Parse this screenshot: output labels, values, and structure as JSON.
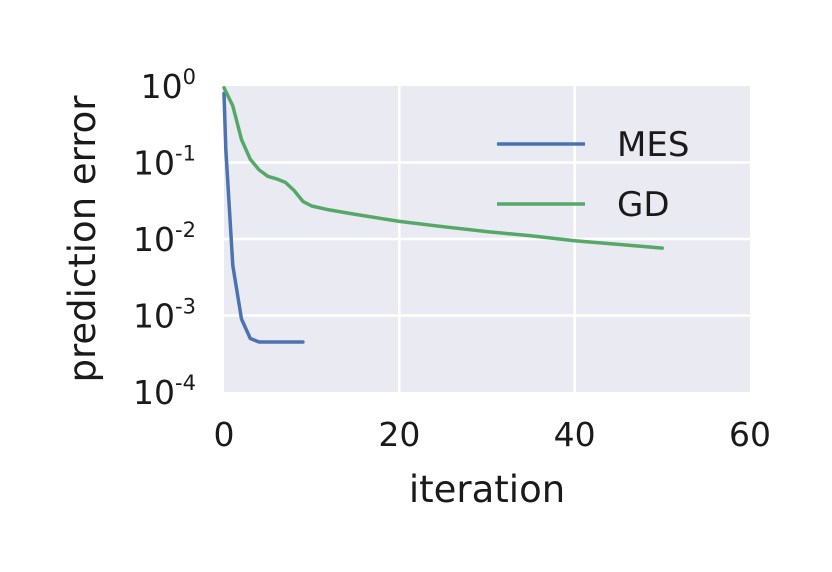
{
  "chart_data": {
    "type": "line",
    "xlabel": "iteration",
    "ylabel": "prediction error",
    "xlim": [
      0,
      60
    ],
    "ylim": [
      0.0001,
      1
    ],
    "yscale": "log",
    "grid": true,
    "legend_position": "top-right",
    "x_ticks": [
      {
        "value": 0,
        "label": "0"
      },
      {
        "value": 20,
        "label": "20"
      },
      {
        "value": 40,
        "label": "40"
      },
      {
        "value": 60,
        "label": "60"
      }
    ],
    "y_ticks": [
      {
        "value": 1,
        "base": "10",
        "exp": "0"
      },
      {
        "value": 0.1,
        "base": "10",
        "exp": "-1"
      },
      {
        "value": 0.01,
        "base": "10",
        "exp": "-2"
      },
      {
        "value": 0.001,
        "base": "10",
        "exp": "-3"
      },
      {
        "value": 0.0001,
        "base": "10",
        "exp": "-4"
      }
    ],
    "series": [
      {
        "name": "MES",
        "color": "#4c72b0",
        "x": [
          0,
          0.2,
          1,
          2,
          3,
          4,
          5,
          6,
          7,
          8,
          9
        ],
        "y": [
          0.8,
          0.15,
          0.0045,
          0.0009,
          0.0005,
          0.00045,
          0.00045,
          0.00045,
          0.00045,
          0.00045,
          0.00045
        ]
      },
      {
        "name": "GD",
        "color": "#55a868",
        "x": [
          0,
          1,
          2,
          3,
          4,
          5,
          6,
          7,
          8,
          9,
          10,
          12,
          15,
          20,
          25,
          30,
          35,
          40,
          45,
          50
        ],
        "y": [
          0.95,
          0.55,
          0.2,
          0.11,
          0.08,
          0.066,
          0.061,
          0.055,
          0.043,
          0.031,
          0.027,
          0.024,
          0.021,
          0.017,
          0.0145,
          0.0125,
          0.011,
          0.0095,
          0.0085,
          0.0076
        ]
      }
    ]
  }
}
